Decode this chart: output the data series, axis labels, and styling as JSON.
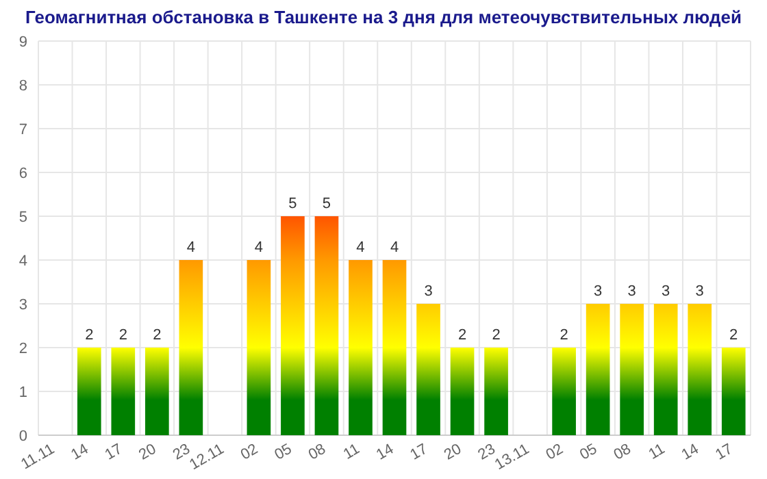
{
  "chart_data": {
    "type": "bar",
    "title": "Геомагнитная обстановка в Ташкенте на 3 дня для метеочувствительных людей",
    "categories": [
      "11.11",
      "14",
      "17",
      "20",
      "23",
      "12.11",
      "02",
      "05",
      "08",
      "11",
      "14",
      "17",
      "20",
      "23",
      "13.11",
      "02",
      "05",
      "08",
      "11",
      "14",
      "17"
    ],
    "values": [
      null,
      2,
      2,
      2,
      4,
      null,
      4,
      5,
      5,
      4,
      4,
      3,
      2,
      2,
      null,
      2,
      3,
      3,
      3,
      3,
      2
    ],
    "color": "#ffff00",
    "ylim": [
      0,
      9
    ],
    "yticks": [
      0,
      1,
      2,
      3,
      4,
      5,
      6,
      7,
      8,
      9
    ],
    "grid": true,
    "data_labels": true
  }
}
